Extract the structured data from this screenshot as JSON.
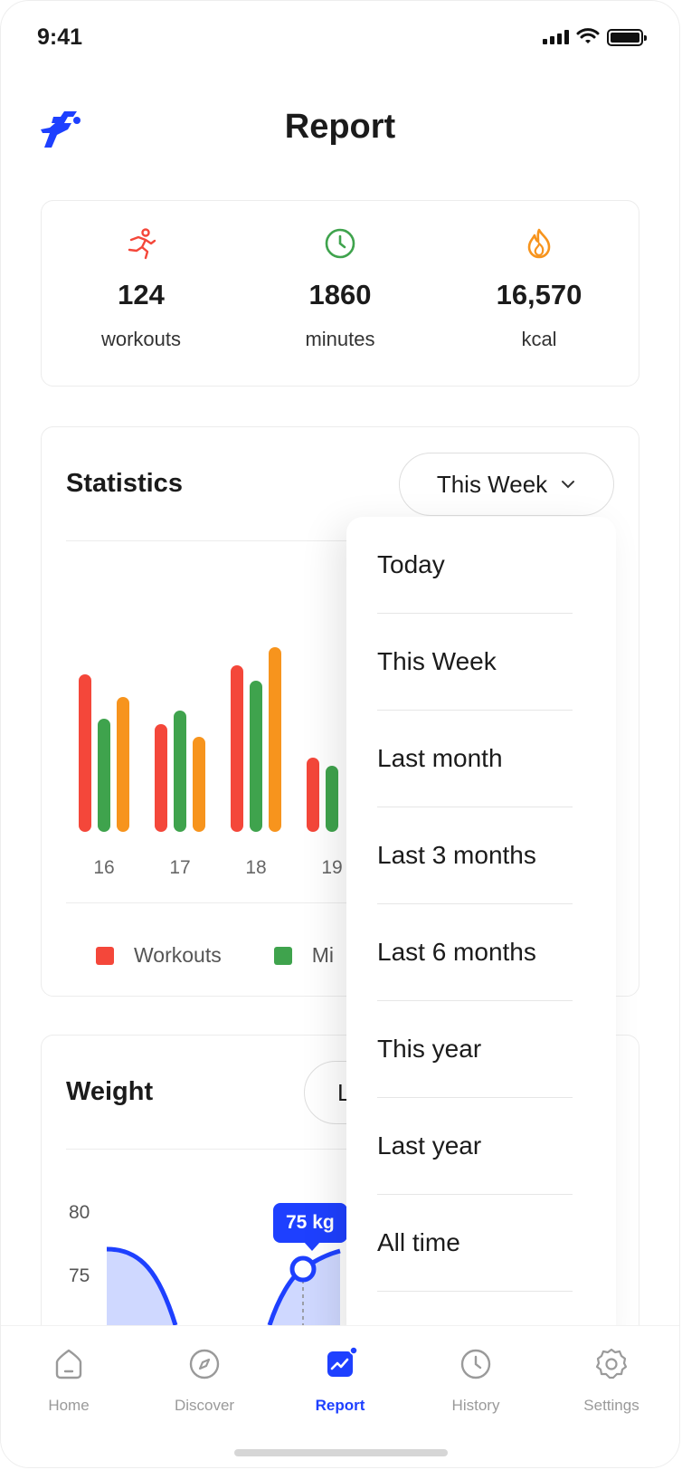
{
  "status_bar": {
    "time": "9:41"
  },
  "header": {
    "title": "Report",
    "logo_icon": "running-figure-icon"
  },
  "summary": [
    {
      "value": "124",
      "label": "workouts",
      "icon": "running-icon",
      "color": "#f4473a"
    },
    {
      "value": "1860",
      "label": "minutes",
      "icon": "clock-icon",
      "color": "#3fa34d"
    },
    {
      "value": "16,570",
      "label": "kcal",
      "icon": "flame-icon",
      "color": "#f7941d"
    }
  ],
  "statistics": {
    "title": "Statistics",
    "period_selected": "This Week",
    "colors": {
      "workouts": "#f4473a",
      "minutes": "#3fa34d",
      "kcal": "#f7941d"
    },
    "legend": [
      {
        "label": "Workouts",
        "color": "#f4473a"
      },
      {
        "label": "Mi",
        "color": "#3fa34d"
      }
    ]
  },
  "chart_data": {
    "type": "bar",
    "categories": [
      "16",
      "17",
      "18",
      "19"
    ],
    "series": [
      {
        "name": "Workouts",
        "values": [
          174,
          119,
          184,
          82
        ]
      },
      {
        "name": "Minutes",
        "values": [
          125,
          134,
          167,
          73
        ]
      },
      {
        "name": "kcal",
        "values": [
          149,
          105,
          204,
          null
        ]
      }
    ],
    "xlabel": "",
    "ylabel": ""
  },
  "period_dropdown": {
    "options": [
      "Today",
      "This Week",
      "Last month",
      "Last 3 months",
      "Last 6 months",
      "This year",
      "Last year",
      "All time"
    ]
  },
  "weight": {
    "title": "Weight",
    "range_label": "L",
    "y_ticks": [
      "80",
      "75"
    ],
    "tooltip": "75 kg",
    "accent": "#1e40ff"
  },
  "tabbar": [
    {
      "label": "Home",
      "icon": "home-icon",
      "active": false
    },
    {
      "label": "Discover",
      "icon": "compass-icon",
      "active": false
    },
    {
      "label": "Report",
      "icon": "chart-icon",
      "active": true
    },
    {
      "label": "History",
      "icon": "clock-icon",
      "active": false
    },
    {
      "label": "Settings",
      "icon": "gear-icon",
      "active": false
    }
  ]
}
